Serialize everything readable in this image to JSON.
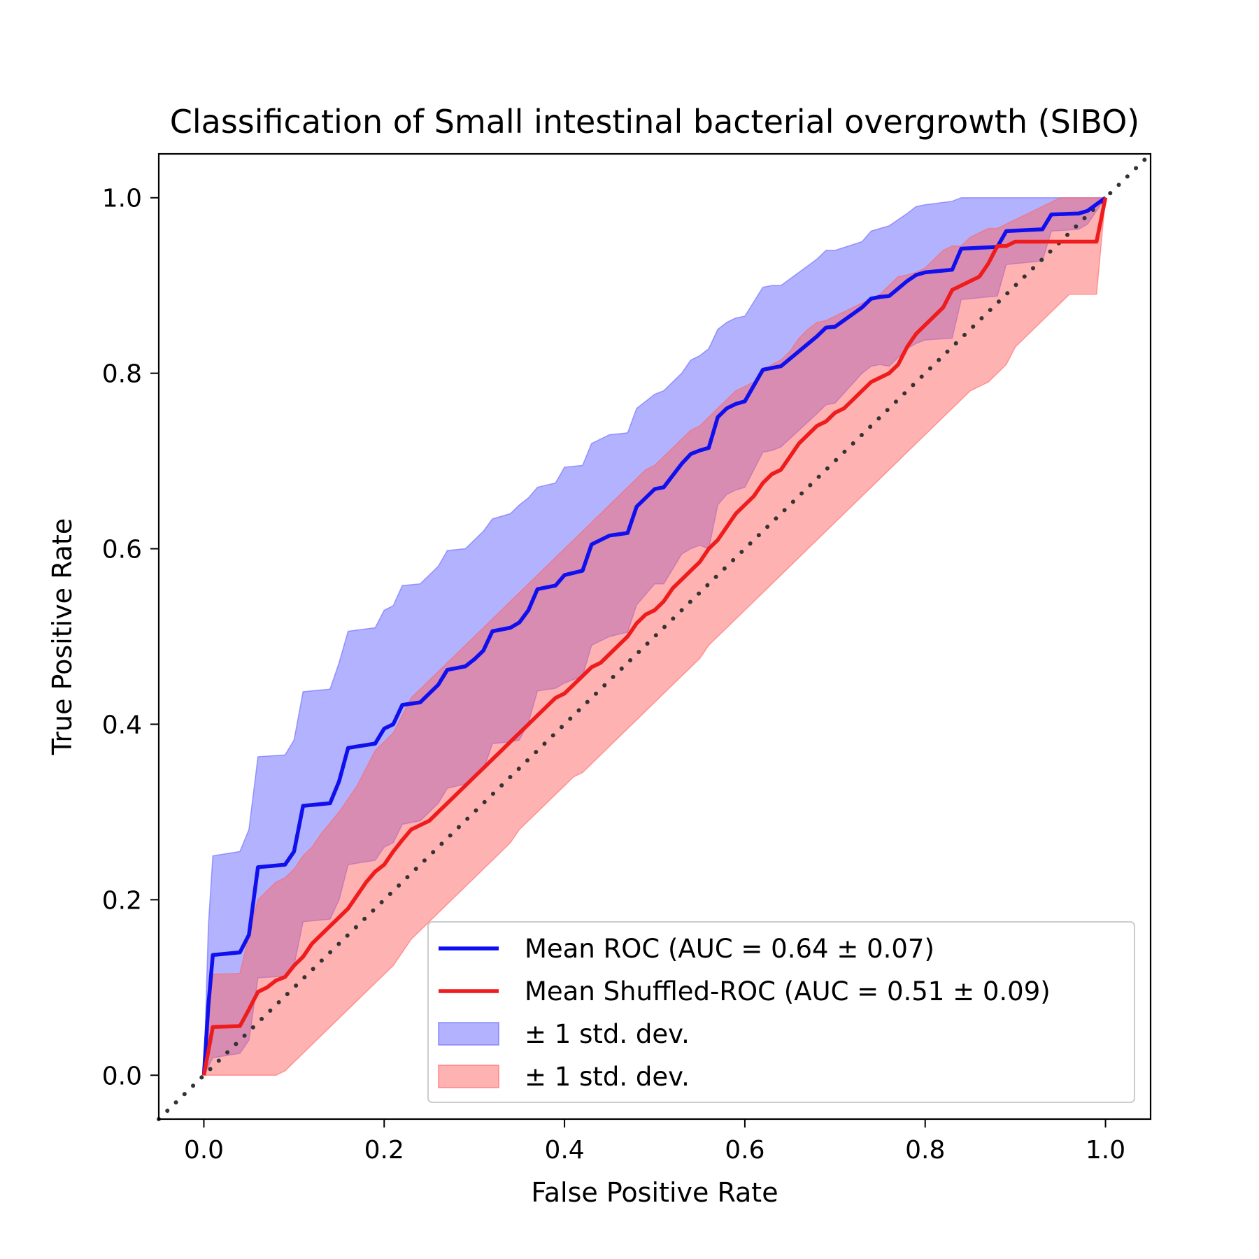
{
  "chart_data": {
    "type": "line",
    "title": "Classification of Small intestinal bacterial overgrowth (SIBO)",
    "xlabel": "False Positive Rate",
    "ylabel": "True Positive Rate",
    "xlim": [
      -0.05,
      1.05
    ],
    "ylim": [
      -0.05,
      1.05
    ],
    "xticks": [
      0.0,
      0.2,
      0.4,
      0.6,
      0.8,
      1.0
    ],
    "yticks": [
      0.0,
      0.2,
      0.4,
      0.6,
      0.8,
      1.0
    ],
    "xtick_labels": [
      "0.0",
      "0.2",
      "0.4",
      "0.6",
      "0.8",
      "1.0"
    ],
    "ytick_labels": [
      "0.0",
      "0.2",
      "0.4",
      "0.6",
      "0.8",
      "1.0"
    ],
    "grid": false,
    "legend_position": "lower-right",
    "reference_line": {
      "x": [
        -0.05,
        1.05
      ],
      "y": [
        -0.05,
        1.05
      ],
      "style": "dotted",
      "color": "#333333"
    },
    "series": [
      {
        "name": "Mean ROC (AUC = 0.64 ± 0.07)",
        "color": "#1010ee",
        "x": [
          0.0,
          0.005,
          0.01,
          0.04,
          0.05,
          0.06,
          0.09,
          0.1,
          0.11,
          0.14,
          0.15,
          0.16,
          0.19,
          0.2,
          0.21,
          0.22,
          0.24,
          0.25,
          0.26,
          0.27,
          0.29,
          0.3,
          0.31,
          0.32,
          0.34,
          0.35,
          0.36,
          0.37,
          0.39,
          0.4,
          0.42,
          0.43,
          0.45,
          0.47,
          0.48,
          0.49,
          0.5,
          0.51,
          0.53,
          0.54,
          0.55,
          0.56,
          0.57,
          0.58,
          0.59,
          0.6,
          0.62,
          0.63,
          0.64,
          0.68,
          0.69,
          0.7,
          0.73,
          0.74,
          0.75,
          0.76,
          0.78,
          0.79,
          0.8,
          0.83,
          0.84,
          0.88,
          0.89,
          0.93,
          0.94,
          0.97,
          0.98,
          1.0
        ],
        "y": [
          0.0,
          0.08,
          0.137,
          0.14,
          0.16,
          0.237,
          0.24,
          0.255,
          0.307,
          0.31,
          0.335,
          0.373,
          0.378,
          0.395,
          0.4,
          0.422,
          0.425,
          0.435,
          0.445,
          0.462,
          0.466,
          0.474,
          0.484,
          0.506,
          0.51,
          0.516,
          0.53,
          0.554,
          0.558,
          0.57,
          0.575,
          0.605,
          0.615,
          0.618,
          0.648,
          0.658,
          0.668,
          0.67,
          0.697,
          0.708,
          0.712,
          0.715,
          0.75,
          0.76,
          0.765,
          0.768,
          0.804,
          0.806,
          0.808,
          0.842,
          0.852,
          0.853,
          0.875,
          0.885,
          0.887,
          0.888,
          0.905,
          0.912,
          0.915,
          0.918,
          0.942,
          0.944,
          0.962,
          0.964,
          0.981,
          0.982,
          0.985,
          1.0
        ]
      },
      {
        "name": "Mean Shuffled-ROC (AUC = 0.51 ± 0.09)",
        "color": "#ee1c1c",
        "x": [
          0.0,
          0.01,
          0.04,
          0.05,
          0.06,
          0.07,
          0.08,
          0.09,
          0.1,
          0.11,
          0.12,
          0.13,
          0.15,
          0.16,
          0.17,
          0.18,
          0.19,
          0.2,
          0.21,
          0.22,
          0.23,
          0.24,
          0.25,
          0.26,
          0.27,
          0.28,
          0.29,
          0.3,
          0.31,
          0.32,
          0.33,
          0.34,
          0.35,
          0.36,
          0.37,
          0.38,
          0.39,
          0.4,
          0.41,
          0.42,
          0.43,
          0.44,
          0.45,
          0.46,
          0.47,
          0.48,
          0.49,
          0.5,
          0.51,
          0.52,
          0.53,
          0.54,
          0.55,
          0.56,
          0.57,
          0.58,
          0.59,
          0.6,
          0.61,
          0.62,
          0.63,
          0.64,
          0.65,
          0.66,
          0.67,
          0.68,
          0.69,
          0.7,
          0.71,
          0.72,
          0.73,
          0.74,
          0.75,
          0.76,
          0.77,
          0.78,
          0.79,
          0.8,
          0.81,
          0.82,
          0.83,
          0.84,
          0.85,
          0.86,
          0.87,
          0.88,
          0.89,
          0.9,
          0.91,
          0.92,
          0.93,
          0.94,
          0.95,
          0.96,
          0.97,
          0.98,
          0.99,
          1.0
        ],
        "y": [
          0.0,
          0.055,
          0.056,
          0.075,
          0.095,
          0.1,
          0.108,
          0.112,
          0.125,
          0.135,
          0.15,
          0.16,
          0.18,
          0.19,
          0.205,
          0.22,
          0.232,
          0.24,
          0.255,
          0.268,
          0.28,
          0.285,
          0.29,
          0.3,
          0.31,
          0.32,
          0.33,
          0.34,
          0.35,
          0.36,
          0.37,
          0.38,
          0.39,
          0.4,
          0.41,
          0.42,
          0.43,
          0.435,
          0.445,
          0.455,
          0.465,
          0.47,
          0.48,
          0.49,
          0.5,
          0.515,
          0.525,
          0.53,
          0.54,
          0.555,
          0.565,
          0.575,
          0.585,
          0.6,
          0.61,
          0.625,
          0.64,
          0.65,
          0.66,
          0.675,
          0.685,
          0.69,
          0.705,
          0.72,
          0.73,
          0.74,
          0.745,
          0.755,
          0.76,
          0.77,
          0.78,
          0.79,
          0.795,
          0.8,
          0.81,
          0.83,
          0.845,
          0.855,
          0.865,
          0.875,
          0.895,
          0.9,
          0.905,
          0.91,
          0.925,
          0.945,
          0.945,
          0.95,
          0.95,
          0.95,
          0.95,
          0.95,
          0.95,
          0.95,
          0.95,
          0.95,
          0.95,
          1.0
        ]
      },
      {
        "name": "± 1 std. dev.",
        "type": "band",
        "color": "#6666ff",
        "opacity": 0.5,
        "x": [
          0.0,
          0.005,
          0.01,
          0.04,
          0.05,
          0.06,
          0.09,
          0.1,
          0.11,
          0.14,
          0.15,
          0.16,
          0.19,
          0.2,
          0.21,
          0.22,
          0.24,
          0.25,
          0.26,
          0.27,
          0.29,
          0.3,
          0.31,
          0.32,
          0.34,
          0.35,
          0.36,
          0.37,
          0.39,
          0.4,
          0.42,
          0.43,
          0.45,
          0.47,
          0.48,
          0.49,
          0.5,
          0.51,
          0.53,
          0.54,
          0.55,
          0.56,
          0.57,
          0.58,
          0.59,
          0.6,
          0.62,
          0.63,
          0.64,
          0.68,
          0.69,
          0.7,
          0.73,
          0.74,
          0.75,
          0.76,
          0.78,
          0.79,
          0.8,
          0.83,
          0.84,
          0.88,
          0.89,
          0.93,
          0.94,
          0.97,
          0.98,
          1.0
        ],
        "upper": [
          0.0,
          0.17,
          0.25,
          0.255,
          0.28,
          0.363,
          0.365,
          0.382,
          0.437,
          0.44,
          0.47,
          0.506,
          0.51,
          0.53,
          0.535,
          0.558,
          0.56,
          0.57,
          0.58,
          0.598,
          0.6,
          0.61,
          0.62,
          0.634,
          0.64,
          0.65,
          0.658,
          0.67,
          0.675,
          0.693,
          0.695,
          0.72,
          0.73,
          0.732,
          0.76,
          0.768,
          0.776,
          0.78,
          0.8,
          0.815,
          0.82,
          0.828,
          0.85,
          0.858,
          0.863,
          0.865,
          0.898,
          0.9,
          0.9,
          0.93,
          0.94,
          0.94,
          0.95,
          0.962,
          0.965,
          0.968,
          0.982,
          0.99,
          0.992,
          0.996,
          1.0,
          1.0,
          1.0,
          1.0,
          1.0,
          1.0,
          1.0,
          1.0
        ],
        "lower": [
          0.0,
          0.01,
          0.02,
          0.025,
          0.04,
          0.111,
          0.113,
          0.125,
          0.175,
          0.178,
          0.2,
          0.24,
          0.245,
          0.26,
          0.265,
          0.286,
          0.29,
          0.3,
          0.31,
          0.327,
          0.332,
          0.338,
          0.348,
          0.378,
          0.38,
          0.382,
          0.402,
          0.438,
          0.441,
          0.447,
          0.455,
          0.49,
          0.5,
          0.505,
          0.536,
          0.548,
          0.56,
          0.56,
          0.594,
          0.6,
          0.604,
          0.6,
          0.65,
          0.662,
          0.667,
          0.67,
          0.71,
          0.712,
          0.716,
          0.754,
          0.764,
          0.766,
          0.8,
          0.808,
          0.81,
          0.808,
          0.828,
          0.834,
          0.838,
          0.84,
          0.884,
          0.888,
          0.924,
          0.928,
          0.962,
          0.964,
          0.97,
          1.0
        ]
      },
      {
        "name": "± 1 std. dev.",
        "type": "band",
        "color": "#ff6666",
        "opacity": 0.5,
        "x": [
          0.0,
          0.01,
          0.04,
          0.05,
          0.06,
          0.07,
          0.08,
          0.09,
          0.1,
          0.11,
          0.12,
          0.13,
          0.15,
          0.16,
          0.17,
          0.18,
          0.19,
          0.2,
          0.21,
          0.22,
          0.23,
          0.24,
          0.25,
          0.26,
          0.27,
          0.28,
          0.29,
          0.3,
          0.31,
          0.32,
          0.33,
          0.34,
          0.35,
          0.36,
          0.37,
          0.38,
          0.39,
          0.4,
          0.41,
          0.42,
          0.43,
          0.44,
          0.45,
          0.46,
          0.47,
          0.48,
          0.49,
          0.5,
          0.51,
          0.52,
          0.53,
          0.54,
          0.55,
          0.56,
          0.57,
          0.58,
          0.59,
          0.6,
          0.61,
          0.62,
          0.63,
          0.64,
          0.65,
          0.66,
          0.67,
          0.68,
          0.69,
          0.7,
          0.71,
          0.72,
          0.73,
          0.74,
          0.75,
          0.76,
          0.77,
          0.78,
          0.79,
          0.8,
          0.81,
          0.82,
          0.83,
          0.84,
          0.85,
          0.86,
          0.87,
          0.88,
          0.89,
          0.9,
          0.91,
          0.92,
          0.93,
          0.94,
          0.95,
          0.96,
          0.97,
          0.98,
          0.99,
          1.0
        ],
        "upper": [
          0.0,
          0.115,
          0.116,
          0.16,
          0.2,
          0.21,
          0.22,
          0.225,
          0.235,
          0.25,
          0.26,
          0.275,
          0.3,
          0.315,
          0.33,
          0.35,
          0.37,
          0.38,
          0.39,
          0.41,
          0.43,
          0.44,
          0.45,
          0.46,
          0.47,
          0.48,
          0.49,
          0.5,
          0.51,
          0.52,
          0.53,
          0.54,
          0.55,
          0.56,
          0.57,
          0.58,
          0.59,
          0.6,
          0.61,
          0.62,
          0.63,
          0.64,
          0.65,
          0.66,
          0.67,
          0.68,
          0.69,
          0.695,
          0.705,
          0.715,
          0.725,
          0.735,
          0.74,
          0.75,
          0.76,
          0.77,
          0.78,
          0.785,
          0.79,
          0.8,
          0.81,
          0.815,
          0.825,
          0.84,
          0.85,
          0.858,
          0.86,
          0.865,
          0.87,
          0.875,
          0.88,
          0.885,
          0.89,
          0.9,
          0.91,
          0.912,
          0.915,
          0.92,
          0.93,
          0.94,
          0.945,
          0.945,
          0.955,
          0.96,
          0.965,
          0.965,
          0.97,
          0.975,
          0.98,
          0.985,
          0.99,
          0.995,
          1.0,
          1.0,
          1.0,
          1.0,
          1.0,
          1.0
        ],
        "lower": [
          0.0,
          0.0,
          0.0,
          0.0,
          0.0,
          0.0,
          0.0,
          0.005,
          0.015,
          0.025,
          0.035,
          0.045,
          0.065,
          0.075,
          0.085,
          0.095,
          0.105,
          0.115,
          0.125,
          0.14,
          0.155,
          0.165,
          0.175,
          0.185,
          0.195,
          0.205,
          0.215,
          0.225,
          0.235,
          0.245,
          0.255,
          0.265,
          0.28,
          0.29,
          0.3,
          0.31,
          0.32,
          0.33,
          0.34,
          0.345,
          0.355,
          0.365,
          0.375,
          0.385,
          0.395,
          0.405,
          0.415,
          0.425,
          0.435,
          0.445,
          0.455,
          0.465,
          0.475,
          0.49,
          0.5,
          0.51,
          0.52,
          0.53,
          0.54,
          0.55,
          0.56,
          0.57,
          0.58,
          0.59,
          0.6,
          0.61,
          0.62,
          0.63,
          0.64,
          0.65,
          0.66,
          0.67,
          0.68,
          0.69,
          0.7,
          0.71,
          0.72,
          0.73,
          0.74,
          0.75,
          0.76,
          0.77,
          0.78,
          0.785,
          0.79,
          0.8,
          0.81,
          0.83,
          0.84,
          0.85,
          0.86,
          0.87,
          0.88,
          0.89,
          0.89,
          0.89,
          0.89,
          1.0
        ]
      }
    ]
  }
}
